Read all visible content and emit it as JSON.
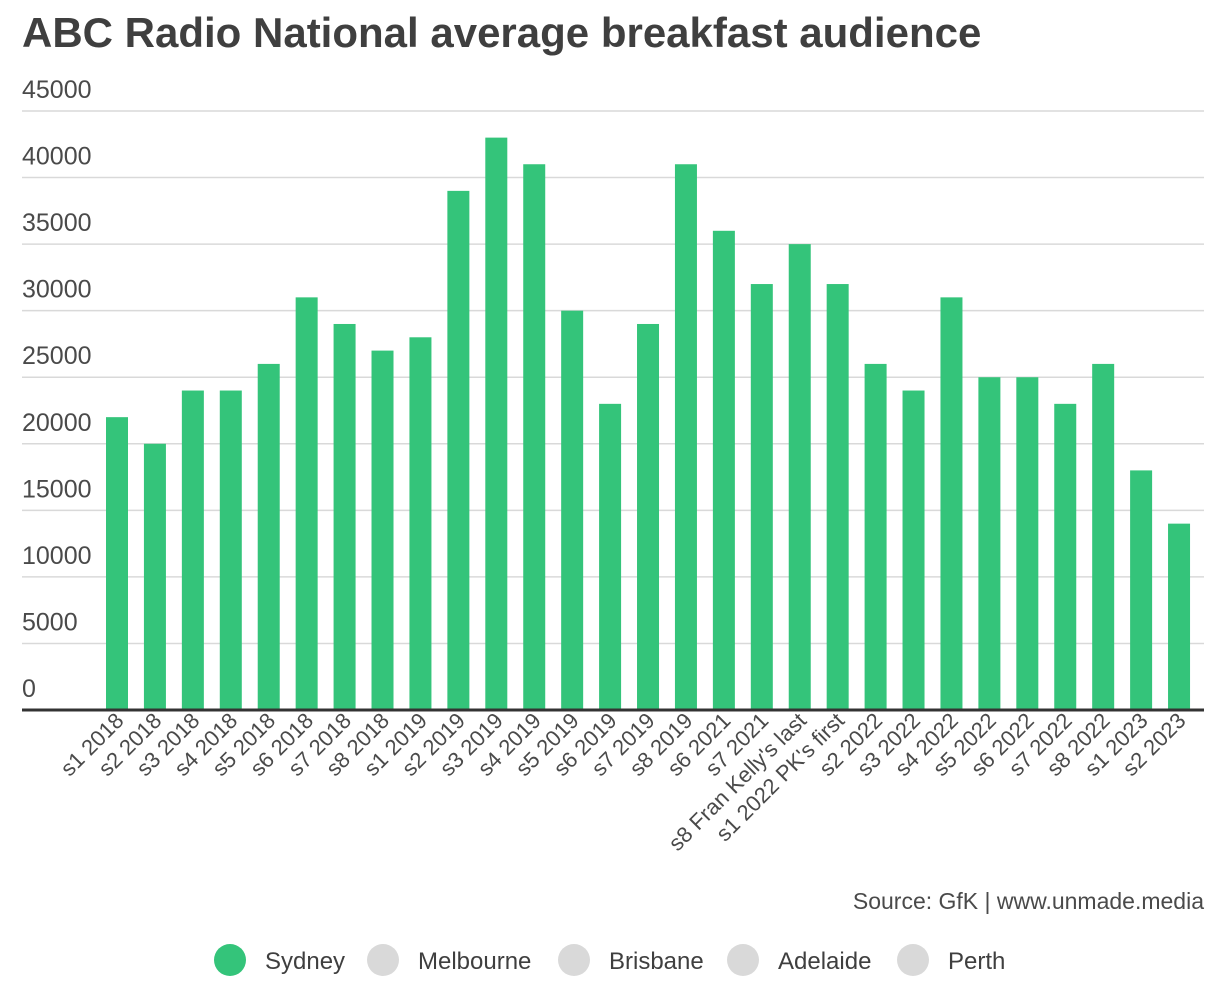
{
  "chart_data": {
    "type": "bar",
    "title": "ABC Radio National average breakfast audience",
    "categories": [
      "s1 2018",
      "s2 2018",
      "s3 2018",
      "s4 2018",
      "s5 2018",
      "s6 2018",
      "s7 2018",
      "s8 2018",
      "s1 2019",
      "s2 2019",
      "s3 2019",
      "s4 2019",
      "s5 2019",
      "s6 2019",
      "s7 2019",
      "s8 2019",
      "s6 2021",
      "s7 2021",
      "s8 Fran Kelly's last",
      "s1 2022 PK's first",
      "s2 2022",
      "s3 2022",
      "s4 2022",
      "s5 2022",
      "s6 2022",
      "s7 2022",
      "s8 2022",
      "s1 2023",
      "s2 2023"
    ],
    "series": [
      {
        "name": "Sydney",
        "values": [
          22000,
          20000,
          24000,
          24000,
          26000,
          31000,
          29000,
          27000,
          28000,
          39000,
          43000,
          41000,
          30000,
          23000,
          29000,
          41000,
          36000,
          32000,
          35000,
          32000,
          26000,
          24000,
          31000,
          25000,
          25000,
          23000,
          26000,
          18000,
          14000
        ]
      }
    ],
    "yticks": [
      0,
      5000,
      10000,
      15000,
      20000,
      25000,
      30000,
      35000,
      40000,
      45000
    ],
    "ylim": [
      0,
      45000
    ],
    "grid": true,
    "legend_position": "bottom",
    "legend": [
      {
        "label": "Sydney",
        "color": "#34c47a",
        "active": true
      },
      {
        "label": "Melbourne",
        "color": "#d9d9d9",
        "active": false
      },
      {
        "label": "Brisbane",
        "color": "#d9d9d9",
        "active": false
      },
      {
        "label": "Adelaide",
        "color": "#d9d9d9",
        "active": false
      },
      {
        "label": "Perth",
        "color": "#d9d9d9",
        "active": false
      }
    ],
    "source": "Source: GfK | www.unmade.media",
    "bar_color": "#34c47a"
  }
}
